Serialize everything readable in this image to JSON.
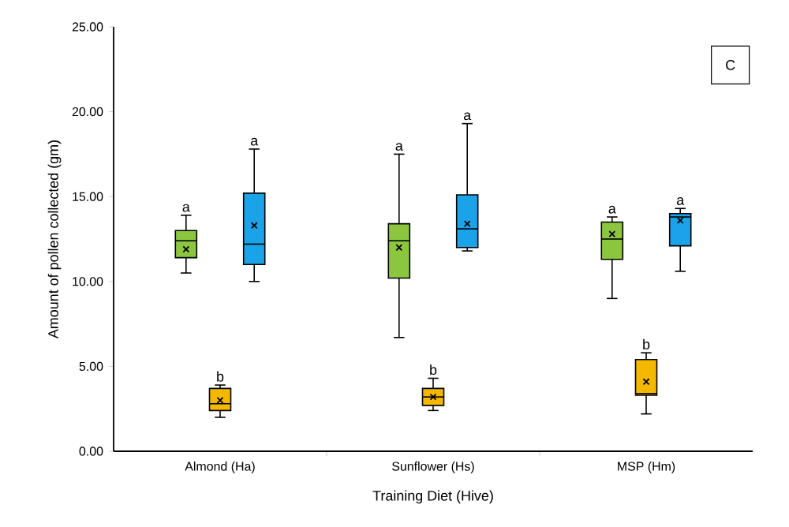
{
  "chart_data": {
    "type": "box",
    "xlabel": "Training Diet (Hive)",
    "ylabel": "Amount of pollen collected (gm)",
    "categories": [
      "Almond (Ha)",
      "Sunflower (Hs)",
      "MSP (Hm)"
    ],
    "ylim": [
      0,
      25
    ],
    "yticks": [
      {
        "value": 0,
        "label": "0.00"
      },
      {
        "value": 5,
        "label": "5.00"
      },
      {
        "value": 10,
        "label": "10.00"
      },
      {
        "value": 15,
        "label": "15.00"
      },
      {
        "value": 20,
        "label": "20.00"
      },
      {
        "value": 25,
        "label": "25.00"
      }
    ],
    "series": [
      {
        "color": "#8cc63f",
        "boxes": [
          {
            "low": 10.5,
            "q1": 11.4,
            "median": 12.4,
            "q3": 13.0,
            "high": 13.9,
            "mean": 11.9
          },
          {
            "low": 6.7,
            "q1": 10.2,
            "median": 12.4,
            "q3": 13.4,
            "high": 17.5,
            "mean": 12.0
          },
          {
            "low": 9.0,
            "q1": 11.3,
            "median": 12.5,
            "q3": 13.5,
            "high": 13.8,
            "mean": 12.8
          }
        ]
      },
      {
        "color": "#f5b800",
        "boxes": [
          {
            "low": 2.0,
            "q1": 2.4,
            "median": 2.8,
            "q3": 3.7,
            "high": 3.9,
            "mean": 3.0
          },
          {
            "low": 2.4,
            "q1": 2.7,
            "median": 3.2,
            "q3": 3.7,
            "high": 4.3,
            "mean": 3.2
          },
          {
            "low": 2.2,
            "q1": 3.3,
            "median": 3.4,
            "q3": 5.4,
            "high": 5.8,
            "mean": 4.1
          }
        ]
      },
      {
        "color": "#1aa3e8",
        "boxes": [
          {
            "low": 10.0,
            "q1": 11.0,
            "median": 12.2,
            "q3": 15.2,
            "high": 17.8,
            "mean": 13.3
          },
          {
            "low": 11.8,
            "q1": 12.0,
            "median": 13.1,
            "q3": 15.1,
            "high": 19.3,
            "mean": 13.4
          },
          {
            "low": 10.6,
            "q1": 12.1,
            "median": 13.8,
            "q3": 14.0,
            "high": 14.3,
            "mean": 13.6
          }
        ]
      }
    ],
    "annotations": [
      "a",
      "b",
      "a",
      "a",
      "b",
      "a",
      "a",
      "b",
      "a",
      "C"
    ],
    "grid": false
  }
}
